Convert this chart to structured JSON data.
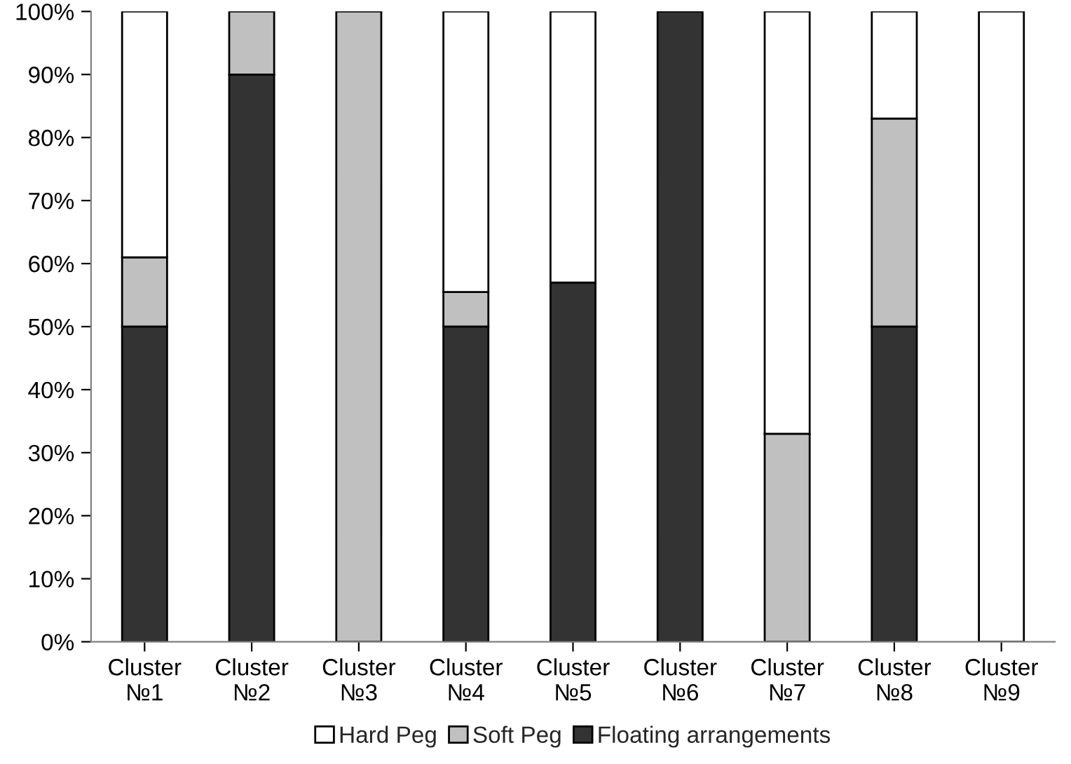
{
  "chart_data": {
    "type": "bar",
    "stacked": true,
    "categories": [
      "Cluster\n№1",
      "Cluster\n№2",
      "Cluster\n№3",
      "Cluster\n№4",
      "Cluster\n№5",
      "Cluster\n№6",
      "Cluster\n№7",
      "Cluster\n№8",
      "Cluster\n№9"
    ],
    "series": [
      {
        "name": "Floating arrangements",
        "color": "#333333",
        "values": [
          50,
          90,
          0,
          50,
          57,
          100,
          0,
          50,
          0
        ]
      },
      {
        "name": "Soft Peg",
        "color": "#c0c0c0",
        "values": [
          11,
          10,
          100,
          5.5,
          0,
          0,
          33,
          33,
          0
        ]
      },
      {
        "name": "Hard Peg",
        "color": "#ffffff",
        "values": [
          39,
          0,
          0,
          44.5,
          43,
          0,
          67,
          17,
          100
        ]
      }
    ],
    "ylim": [
      0,
      100
    ],
    "yticks": [
      {
        "value": 0,
        "label": "0%"
      },
      {
        "value": 10,
        "label": "10%"
      },
      {
        "value": 20,
        "label": "20%"
      },
      {
        "value": 30,
        "label": "30%"
      },
      {
        "value": 40,
        "label": "40%"
      },
      {
        "value": 50,
        "label": "50%"
      },
      {
        "value": 60,
        "label": "60%"
      },
      {
        "value": 70,
        "label": "70%"
      },
      {
        "value": 80,
        "label": "80%"
      },
      {
        "value": 90,
        "label": "90%"
      },
      {
        "value": 100,
        "label": "100%"
      }
    ],
    "grid": false,
    "legend": "bottom"
  }
}
